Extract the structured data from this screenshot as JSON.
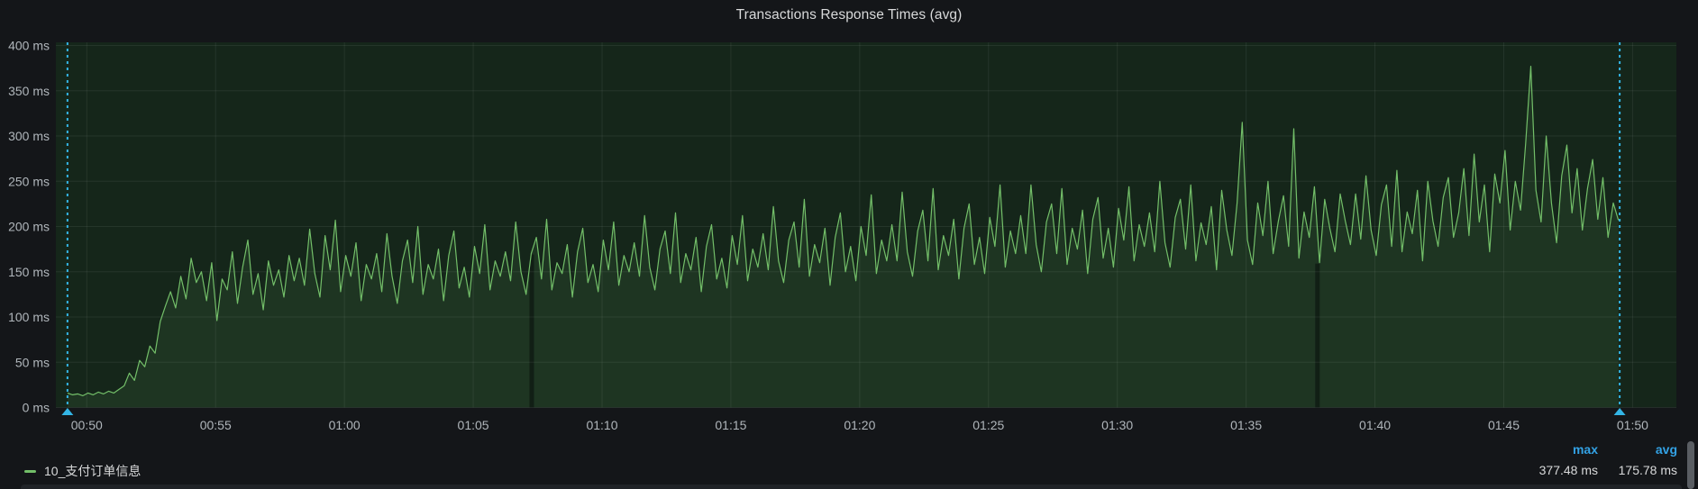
{
  "panel": {
    "title": "Transactions Response Times (avg)"
  },
  "colors": {
    "background": "#141619",
    "plot_background": "#15261a",
    "series": "#73bf69",
    "series_fill": "rgba(115,191,105,0.10)",
    "grid": "rgba(255,255,255,0.07)",
    "annotation": "#33b5e5",
    "tick_text": "#b0b6bb",
    "text": "#d8d9da",
    "stat_header": "#33a2e5",
    "gap_stripe": "#111f15",
    "scrollbar": "#5a5e63",
    "bottom_strip": "#202327"
  },
  "chart_data": {
    "type": "line",
    "title": "Transactions Response Times (avg)",
    "unit": "ms",
    "ylim": [
      0,
      400
    ],
    "yticks": [
      0,
      50,
      100,
      150,
      200,
      250,
      300,
      350,
      400
    ],
    "ytick_labels": [
      "0 ms",
      "50 ms",
      "100 ms",
      "150 ms",
      "200 ms",
      "250 ms",
      "300 ms",
      "350 ms",
      "400 ms"
    ],
    "xtick_minutes": [
      50,
      55,
      60,
      65,
      70,
      75,
      80,
      85,
      90,
      95,
      100,
      105,
      110
    ],
    "xtick_labels": [
      "00:50",
      "00:55",
      "01:00",
      "01:05",
      "01:10",
      "01:15",
      "01:20",
      "01:25",
      "01:30",
      "01:35",
      "01:40",
      "01:45",
      "01:50"
    ],
    "x_start_min": 48.8,
    "x_end_min": 111.7,
    "grid": true,
    "legend_position": "bottom",
    "annotation_region": {
      "start_min": 49.25,
      "end_min": 109.5
    },
    "data_gaps_min": [
      67.27,
      97.77
    ],
    "series": [
      {
        "name": "10_支付订单信息",
        "max": "377.48 ms",
        "avg": "175.78 ms",
        "t0_min": 49.25,
        "dt_min": 0.2,
        "values": [
          16,
          14,
          15,
          13,
          16,
          14,
          17,
          15,
          18,
          16,
          20,
          24,
          38,
          30,
          52,
          45,
          68,
          60,
          95,
          112,
          128,
          110,
          145,
          120,
          165,
          138,
          150,
          118,
          160,
          96,
          142,
          130,
          172,
          115,
          155,
          185,
          125,
          148,
          108,
          162,
          135,
          152,
          122,
          168,
          140,
          165,
          135,
          197,
          148,
          122,
          190,
          152,
          207,
          128,
          168,
          145,
          182,
          118,
          158,
          142,
          170,
          128,
          192,
          145,
          115,
          162,
          185,
          138,
          200,
          125,
          158,
          142,
          175,
          118,
          168,
          195,
          132,
          155,
          122,
          178,
          148,
          202,
          130,
          162,
          145,
          172,
          140,
          205,
          150,
          125,
          170,
          188,
          142,
          208,
          130,
          160,
          148,
          180,
          122,
          172,
          198,
          138,
          158,
          128,
          185,
          152,
          205,
          135,
          168,
          150,
          182,
          145,
          212,
          155,
          130,
          175,
          195,
          148,
          215,
          138,
          170,
          152,
          188,
          128,
          178,
          202,
          142,
          165,
          132,
          190,
          158,
          212,
          140,
          175,
          155,
          192,
          152,
          222,
          162,
          138,
          185,
          205,
          155,
          230,
          145,
          180,
          160,
          198,
          135,
          188,
          215,
          150,
          178,
          140,
          200,
          168,
          235,
          148,
          185,
          162,
          202,
          162,
          238,
          172,
          145,
          195,
          218,
          162,
          242,
          152,
          190,
          168,
          208,
          142,
          198,
          225,
          158,
          188,
          148,
          210,
          178,
          246,
          155,
          195,
          170,
          212,
          170,
          246,
          180,
          150,
          205,
          225,
          170,
          242,
          158,
          198,
          175,
          218,
          148,
          208,
          232,
          165,
          198,
          155,
          220,
          185,
          244,
          162,
          202,
          178,
          215,
          172,
          250,
          182,
          155,
          210,
          230,
          175,
          246,
          162,
          204,
          180,
          222,
          152,
          240,
          196,
          168,
          226,
          315,
          185,
          158,
          226,
          190,
          250,
          170,
          206,
          234,
          178,
          308,
          165,
          216,
          188,
          244,
          160,
          230,
          198,
          172,
          236,
          206,
          180,
          236,
          186,
          256,
          196,
          168,
          224,
          246,
          178,
          262,
          172,
          216,
          192,
          240,
          162,
          250,
          206,
          178,
          232,
          254,
          188,
          215,
          264,
          190,
          280,
          205,
          246,
          172,
          258,
          226,
          284,
          196,
          250,
          218,
          292,
          377,
          240,
          205,
          300,
          226,
          182,
          256,
          290,
          215,
          264,
          196,
          242,
          274,
          208,
          254,
          188,
          226,
          207
        ]
      }
    ]
  },
  "legend": {
    "series_label": "10_支付订单信息",
    "stats": [
      {
        "label": "max",
        "value": "377.48 ms"
      },
      {
        "label": "avg",
        "value": "175.78 ms"
      }
    ]
  }
}
